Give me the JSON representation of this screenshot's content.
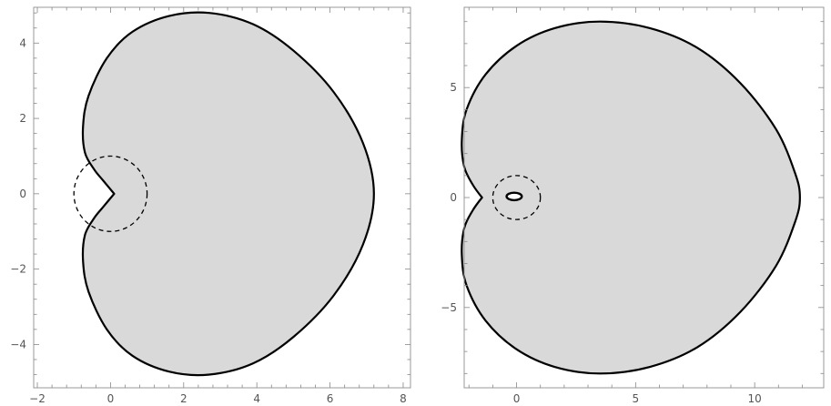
{
  "chart_data": [
    {
      "type": "area",
      "title": "",
      "xlabel": "",
      "ylabel": "",
      "xlim": [
        -2.1,
        8.2
      ],
      "ylim": [
        -5.15,
        4.95
      ],
      "xticks": [
        -2,
        0,
        2,
        4,
        6,
        8
      ],
      "xtick_labels": [
        "−2",
        "0",
        "2",
        "4",
        "6",
        "8"
      ],
      "yticks": [
        -4,
        -2,
        0,
        2,
        4
      ],
      "ytick_labels": [
        "−4",
        "−2",
        "0",
        "2",
        "4"
      ],
      "grid": false,
      "fill_color": "#d9d9d9",
      "series": [
        {
          "style": "solid-filled",
          "points": [
            [
              0.1,
              0
            ],
            [
              -0.2,
              -0.35
            ],
            [
              -0.45,
              -0.65
            ],
            [
              -0.7,
              -1.1
            ],
            [
              -0.75,
              -1.8
            ],
            [
              -0.6,
              -2.6
            ],
            [
              -0.1,
              -3.6
            ],
            [
              0.6,
              -4.3
            ],
            [
              1.6,
              -4.72
            ],
            [
              2.7,
              -4.8
            ],
            [
              3.9,
              -4.5
            ],
            [
              5.0,
              -3.8
            ],
            [
              6.1,
              -2.7
            ],
            [
              6.9,
              -1.35
            ],
            [
              7.2,
              0
            ],
            [
              6.9,
              1.35
            ],
            [
              6.1,
              2.7
            ],
            [
              5.0,
              3.8
            ],
            [
              3.9,
              4.5
            ],
            [
              2.7,
              4.8
            ],
            [
              1.6,
              4.72
            ],
            [
              0.6,
              4.3
            ],
            [
              -0.1,
              3.6
            ],
            [
              -0.6,
              2.6
            ],
            [
              -0.75,
              1.8
            ],
            [
              -0.7,
              1.1
            ],
            [
              -0.45,
              0.65
            ],
            [
              -0.2,
              0.35
            ],
            [
              0.1,
              0
            ]
          ]
        },
        {
          "style": "dashed-circle",
          "center": [
            0,
            0
          ],
          "radius": 1
        }
      ]
    },
    {
      "type": "area",
      "title": "",
      "xlabel": "",
      "ylabel": "",
      "xlim": [
        -2.2,
        12.9
      ],
      "ylim": [
        -8.65,
        8.65
      ],
      "xticks": [
        0,
        5,
        10
      ],
      "xtick_labels": [
        "0",
        "5",
        "10"
      ],
      "yticks": [
        -5,
        0,
        5
      ],
      "ytick_labels": [
        "−5",
        "0",
        "5"
      ],
      "grid": false,
      "fill_color": "#d9d9d9",
      "series": [
        {
          "style": "solid-filled",
          "points": [
            [
              -1.45,
              0
            ],
            [
              -1.85,
              -0.6
            ],
            [
              -2.2,
              -1.4
            ],
            [
              -2.3,
              -2.6
            ],
            [
              -2.1,
              -4.0
            ],
            [
              -1.3,
              -5.6
            ],
            [
              0.0,
              -6.9
            ],
            [
              1.6,
              -7.7
            ],
            [
              3.5,
              -8.0
            ],
            [
              5.6,
              -7.7
            ],
            [
              7.6,
              -6.8
            ],
            [
              9.4,
              -5.2
            ],
            [
              10.9,
              -3.1
            ],
            [
              11.7,
              -1.1
            ],
            [
              11.9,
              0
            ],
            [
              11.7,
              1.1
            ],
            [
              10.9,
              3.1
            ],
            [
              9.4,
              5.2
            ],
            [
              7.6,
              6.8
            ],
            [
              5.6,
              7.7
            ],
            [
              3.5,
              8.0
            ],
            [
              1.6,
              7.7
            ],
            [
              0.0,
              6.9
            ],
            [
              -1.3,
              5.6
            ],
            [
              -2.1,
              4.0
            ],
            [
              -2.3,
              2.6
            ],
            [
              -2.2,
              1.4
            ],
            [
              -1.85,
              0.6
            ],
            [
              -1.45,
              0
            ]
          ]
        },
        {
          "style": "solid-loop",
          "center": [
            -0.1,
            0.05
          ],
          "rx": 0.32,
          "ry": 0.17
        },
        {
          "style": "dashed-circle",
          "center": [
            0,
            0
          ],
          "radius": 1
        }
      ]
    }
  ]
}
